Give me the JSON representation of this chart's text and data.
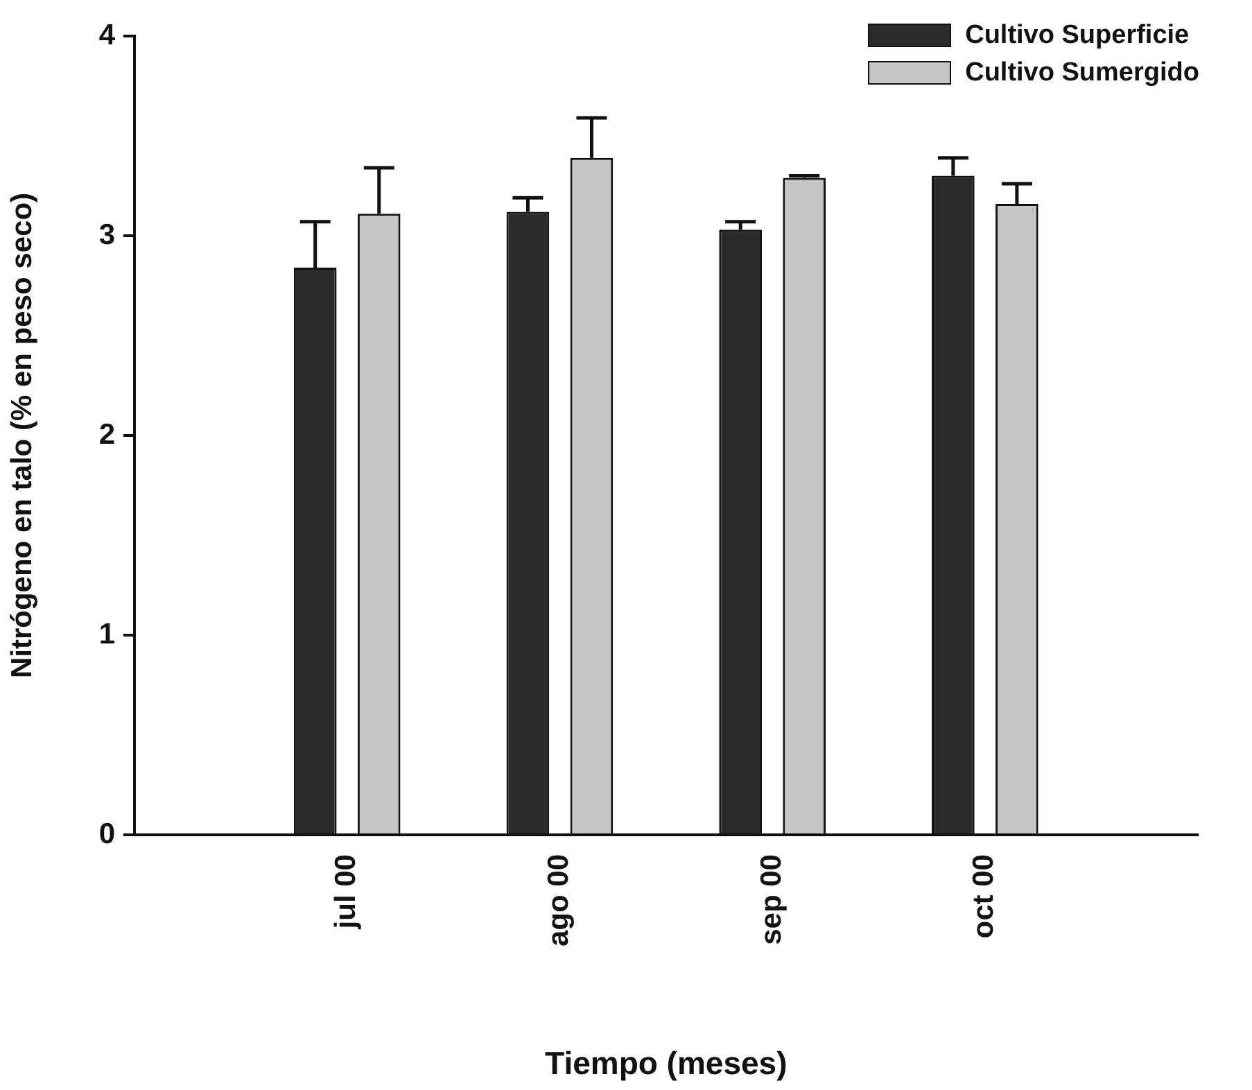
{
  "chart_data": {
    "type": "bar",
    "xlabel": "Tiempo (meses)",
    "ylabel": "Nitrógeno en talo (% en peso seco)",
    "categories": [
      null,
      "jul 00",
      "ago 00",
      "sep 00",
      "oct 00",
      null
    ],
    "series": [
      {
        "name": "Cultivo Superficie",
        "color": "#2b2b2b",
        "values": [
          null,
          2.84,
          3.12,
          3.03,
          3.3,
          null
        ],
        "errors": [
          null,
          [
            2.84,
            3.07
          ],
          [
            3.12,
            3.19
          ],
          [
            3.03,
            3.07
          ],
          [
            3.3,
            3.39
          ],
          null
        ]
      },
      {
        "name": "Cultivo Sumergido",
        "color": "#c4c4c4",
        "values": [
          null,
          3.11,
          3.39,
          3.29,
          3.16,
          null
        ],
        "errors": [
          null,
          [
            3.11,
            3.34
          ],
          [
            3.39,
            3.59
          ],
          [
            3.29,
            3.3
          ],
          [
            3.16,
            3.26
          ],
          null
        ]
      }
    ],
    "ylim": [
      0,
      4
    ],
    "yticks": [
      0,
      1,
      2,
      3,
      4
    ],
    "grid": false,
    "legend": "top right"
  }
}
